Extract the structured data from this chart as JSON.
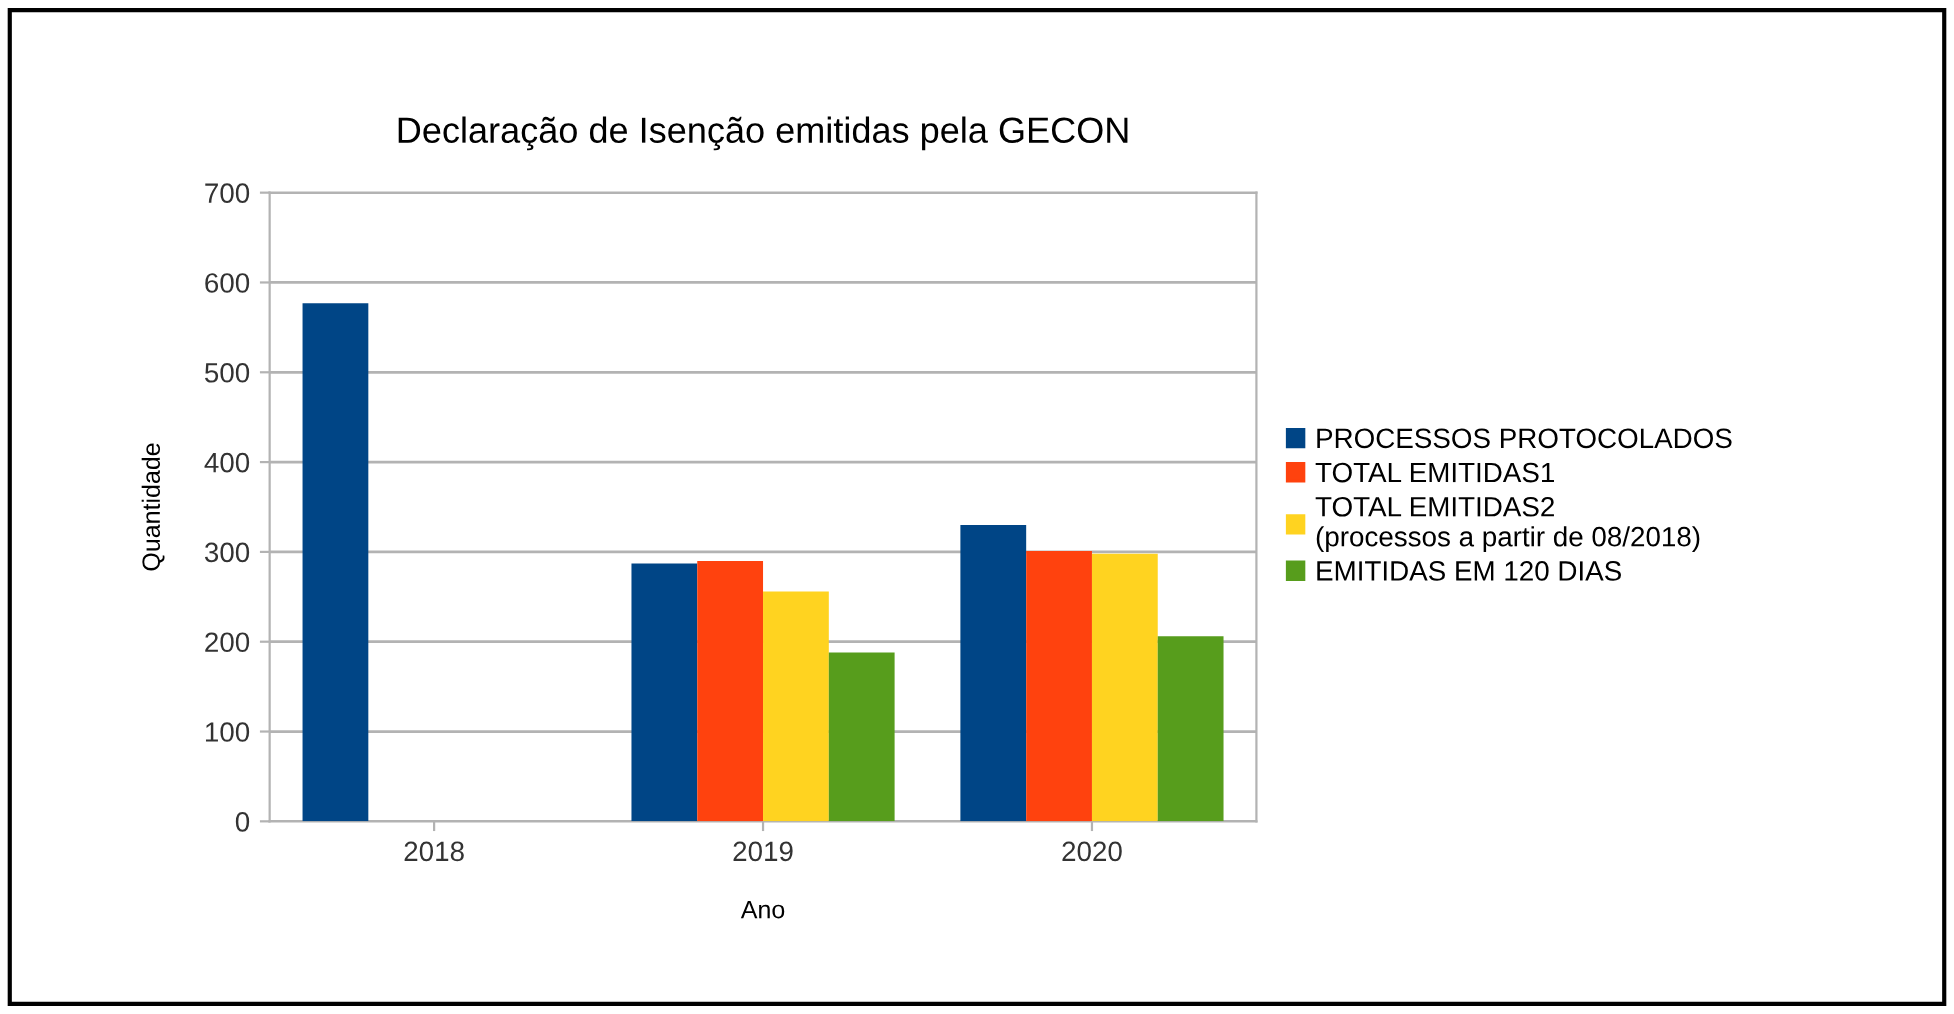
{
  "chart_data": {
    "type": "bar",
    "title": "Declaração de Isenção emitidas pela GECON",
    "xlabel": "Ano",
    "ylabel": "Quantidade",
    "categories": [
      "2018",
      "2019",
      "2020"
    ],
    "series": [
      {
        "name": "PROCESSOS PROTOCOLADOS",
        "color": "#004586",
        "values": [
          577,
          287,
          330
        ]
      },
      {
        "name": "TOTAL EMITIDAS1",
        "color": "#ff420e",
        "values": [
          null,
          290,
          301
        ]
      },
      {
        "name": "TOTAL EMITIDAS2\n(processos a partir de 08/2018)",
        "color": "#ffd320",
        "values": [
          null,
          256,
          298
        ]
      },
      {
        "name": "EMITIDAS EM 120 DIAS",
        "color": "#579d1c",
        "values": [
          null,
          188,
          206
        ]
      }
    ],
    "ylim": [
      0,
      700
    ],
    "yticks": [
      0,
      100,
      200,
      300,
      400,
      500,
      600,
      700
    ],
    "grid": "y",
    "legend": "right"
  }
}
